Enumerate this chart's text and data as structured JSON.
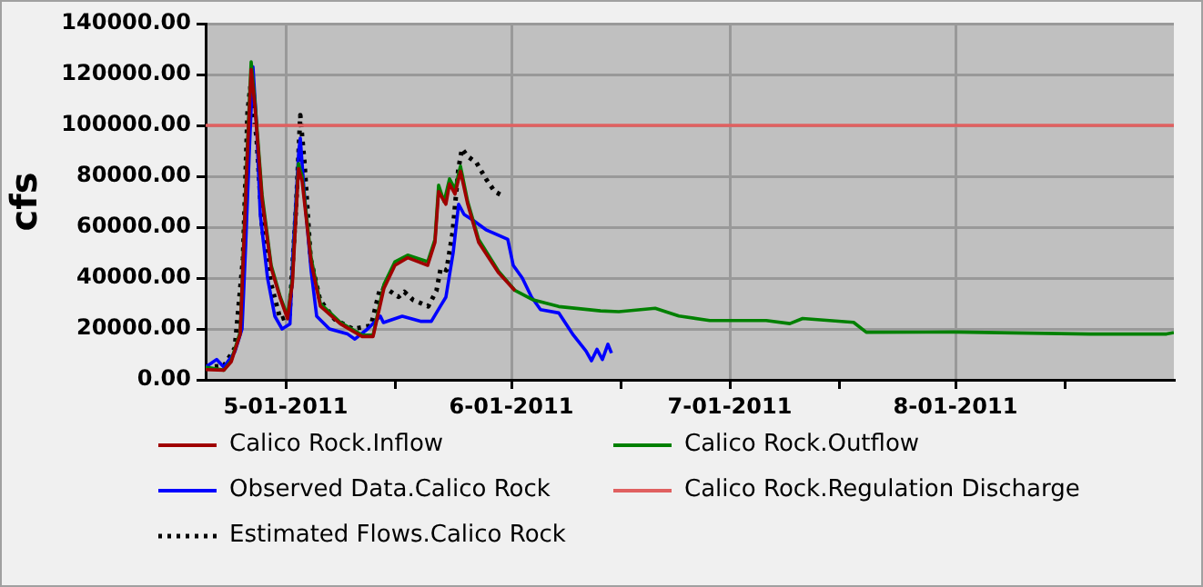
{
  "chart_data": {
    "type": "line",
    "ylabel": "cfs",
    "xlim": [
      "2011-04-20",
      "2011-08-31"
    ],
    "xticks": [
      {
        "value": "2011-05-01",
        "label": "5-01-2011"
      },
      {
        "value": "2011-05-16",
        "label": null
      },
      {
        "value": "2011-06-01",
        "label": "6-01-2011"
      },
      {
        "value": "2011-06-16",
        "label": null
      },
      {
        "value": "2011-07-01",
        "label": "7-01-2011"
      },
      {
        "value": "2011-07-16",
        "label": null
      },
      {
        "value": "2011-08-01",
        "label": "8-01-2011"
      },
      {
        "value": "2011-08-16",
        "label": null
      }
    ],
    "ylim": [
      0,
      140000
    ],
    "yticks": [
      {
        "value": 0,
        "label": "0.00"
      },
      {
        "value": 20000,
        "label": "20000.00"
      },
      {
        "value": 40000,
        "label": "40000.00"
      },
      {
        "value": 60000,
        "label": "60000.00"
      },
      {
        "value": 80000,
        "label": "80000.00"
      },
      {
        "value": 100000,
        "label": "100000.00"
      },
      {
        "value": 120000,
        "label": "120000.00"
      },
      {
        "value": 140000,
        "label": "140000.00"
      }
    ],
    "grid": true,
    "legend": "bottom",
    "marker": "none",
    "series": [
      {
        "name": "Calico Rock.Inflow",
        "color": "#a00000",
        "line_style": "solid",
        "x": [
          "2011-04-20",
          "2011-04-22T12:00",
          "2011-04-23T12:00",
          "2011-04-24T18:00",
          "2011-04-25T18:00",
          "2011-04-26T06:00",
          "2011-04-26T18:00",
          "2011-04-27T18:00",
          "2011-04-29",
          "2011-04-30T06:00",
          "2011-05-01T06:00",
          "2011-05-01T22:00",
          "2011-05-02T18:00",
          "2011-05-03T06:00",
          "2011-05-04T12:00",
          "2011-05-05T18:00",
          "2011-05-08T12:00",
          "2011-05-11T12:00",
          "2011-05-13",
          "2011-05-14T12:00",
          "2011-05-16",
          "2011-05-17T18:00",
          "2011-05-20T12:00",
          "2011-05-21T12:00",
          "2011-05-22",
          "2011-05-23",
          "2011-05-23T12:00",
          "2011-05-24T06:00",
          "2011-05-25",
          "2011-05-26",
          "2011-05-27T12:00",
          "2011-05-30T06:00",
          "2011-06-01T12:00"
        ],
        "values": [
          4000,
          3800,
          7000,
          18000,
          90000,
          122000,
          108000,
          71000,
          44000,
          32000,
          24000,
          38000,
          83000,
          78000,
          46000,
          29000,
          22000,
          17000,
          17000,
          36000,
          45000,
          48000,
          45000,
          54000,
          74000,
          69000,
          77000,
          73000,
          82000,
          69000,
          54000,
          42000,
          35000
        ]
      },
      {
        "name": "Calico Rock.Outflow",
        "color": "#008000",
        "line_style": "solid",
        "x": [
          "2011-04-20",
          "2011-04-22T12:00",
          "2011-04-23T12:00",
          "2011-04-24T18:00",
          "2011-04-25T18:00",
          "2011-04-26T06:00",
          "2011-04-26T18:00",
          "2011-04-27T18:00",
          "2011-04-29",
          "2011-04-30T06:00",
          "2011-05-01T06:00",
          "2011-05-01T22:00",
          "2011-05-02T18:00",
          "2011-05-03T06:00",
          "2011-05-04T12:00",
          "2011-05-05T18:00",
          "2011-05-08T12:00",
          "2011-05-11T12:00",
          "2011-05-13",
          "2011-05-14T12:00",
          "2011-05-16",
          "2011-05-17T18:00",
          "2011-05-20T12:00",
          "2011-05-21T12:00",
          "2011-05-22",
          "2011-05-22T18:00",
          "2011-05-23T12:00",
          "2011-05-24T06:00",
          "2011-05-25",
          "2011-05-26",
          "2011-05-27T12:00",
          "2011-05-30T06:00",
          "2011-06-01T12:00",
          "2011-06-04",
          "2011-06-07T12:00",
          "2011-06-13T06:00",
          "2011-06-15T18:00",
          "2011-06-20T18:00",
          "2011-06-24",
          "2011-06-28T06:00",
          "2011-07-06",
          "2011-07-09T06:00",
          "2011-07-11",
          "2011-07-18",
          "2011-07-19T18:00",
          "2011-08-01",
          "2011-08-19T12:00",
          "2011-08-30",
          "2011-08-31"
        ],
        "values": [
          5000,
          3800,
          7500,
          18800,
          92800,
          125000,
          110000,
          72800,
          45000,
          32600,
          25000,
          40000,
          85000,
          80000,
          47700,
          30000,
          22600,
          17600,
          17600,
          37600,
          46400,
          49000,
          46400,
          55200,
          76500,
          70000,
          79000,
          75000,
          84000,
          70000,
          55200,
          42600,
          35100,
          31400,
          28800,
          27100,
          26800,
          28100,
          25100,
          23300,
          23300,
          22100,
          24100,
          22600,
          18700,
          18800,
          18000,
          18000,
          18600
        ]
      },
      {
        "name": "Observed Data.Calico Rock",
        "color": "#0000ff",
        "line_style": "solid",
        "x": [
          "2011-04-20",
          "2011-04-21T12:00",
          "2011-04-22T12:00",
          "2011-04-24",
          "2011-04-25",
          "2011-04-25T12:00",
          "2011-04-26",
          "2011-04-26T12:00",
          "2011-04-27",
          "2011-04-27T12:00",
          "2011-04-28T12:00",
          "2011-04-29T12:00",
          "2011-04-30T12:00",
          "2011-05-01T14:00",
          "2011-05-02",
          "2011-05-02T19:00",
          "2011-05-03",
          "2011-05-03T12:00",
          "2011-05-04T12:00",
          "2011-05-05T06:00",
          "2011-05-07",
          "2011-05-09T12:00",
          "2011-05-10T12:00",
          "2011-05-12T06:00",
          "2011-05-14",
          "2011-05-14T10:00",
          "2011-05-17",
          "2011-05-19T12:00",
          "2011-05-21",
          "2011-05-22T06:00",
          "2011-05-23",
          "2011-05-24",
          "2011-05-24T18:00",
          "2011-05-25T12:00",
          "2011-05-26T18:00",
          "2011-05-28T12:00",
          "2011-05-31T12:00",
          "2011-06-01T06:00",
          "2011-06-02T12:00",
          "2011-06-03T18:00",
          "2011-06-05",
          "2011-06-07T12:00",
          "2011-06-09T12:00",
          "2011-06-11T06:00",
          "2011-06-12",
          "2011-06-12T18:00",
          "2011-06-13T12:00",
          "2011-06-14T06:00",
          "2011-06-14T18:00"
        ],
        "values": [
          5000,
          8000,
          5000,
          11000,
          20000,
          53000,
          90000,
          123000,
          100000,
          65000,
          40000,
          25000,
          20000,
          22000,
          50000,
          90000,
          95000,
          75000,
          42600,
          25000,
          20000,
          18000,
          16000,
          20000,
          25000,
          22500,
          25000,
          23000,
          23000,
          29000,
          32500,
          50000,
          69000,
          65000,
          62700,
          59000,
          55200,
          45000,
          40000,
          32600,
          27600,
          26300,
          17600,
          11300,
          7500,
          12000,
          8000,
          14000,
          10500
        ]
      },
      {
        "name": "Calico Rock.Regulation Discharge",
        "color": "#e06060",
        "line_style": "solid",
        "x": [
          "2011-04-20",
          "2011-08-31"
        ],
        "values": [
          100000,
          100000
        ]
      },
      {
        "name": "Estimated Flows.Calico Rock",
        "color": "#000000",
        "line_style": "dotted",
        "x": [
          "2011-04-20",
          "2011-04-22T12:00",
          "2011-04-24",
          "2011-04-25T03:00",
          "2011-04-25T18:00",
          "2011-04-26T03:00",
          "2011-04-27",
          "2011-04-27T18:00",
          "2011-04-29",
          "2011-04-30T06:00",
          "2011-05-01T12:00",
          "2011-05-02T10:00",
          "2011-05-03",
          "2011-05-03T14:00",
          "2011-05-04T10:00",
          "2011-05-05T17:00",
          "2011-05-07T17:00",
          "2011-05-10T05:00",
          "2011-05-12T17:00",
          "2011-05-14",
          "2011-05-15T05:00",
          "2011-05-16T12:00",
          "2011-05-17T07:00",
          "2011-05-18T12:00",
          "2011-05-20T14:00",
          "2011-05-21T17:00",
          "2011-05-22T07:00",
          "2011-05-23T02:00",
          "2011-05-23T22:00",
          "2011-05-24T17:00",
          "2011-05-25T05:00",
          "2011-05-26",
          "2011-05-27T05:00",
          "2011-05-28T12:00",
          "2011-05-29T17:00",
          "2011-05-30T12:00"
        ],
        "values": [
          5000,
          5500,
          12500,
          47700,
          105000,
          115000,
          95000,
          60000,
          37600,
          23800,
          25000,
          67700,
          104000,
          85000,
          47700,
          31400,
          23800,
          20000,
          21300,
          36400,
          35100,
          32600,
          34600,
          31400,
          28900,
          35100,
          43900,
          43100,
          57700,
          82800,
          90800,
          87800,
          85300,
          79000,
          74000,
          72800
        ]
      }
    ]
  }
}
